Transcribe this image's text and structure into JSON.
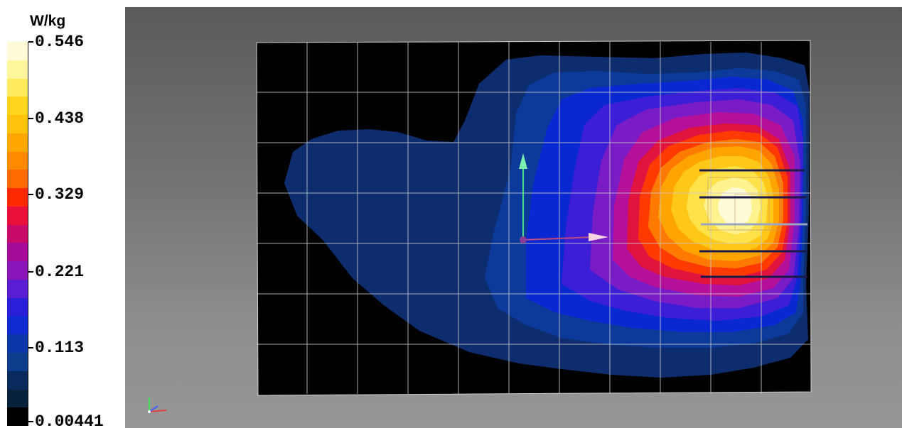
{
  "legend": {
    "unit": "W/kg",
    "ticks": [
      "0.546",
      "0.438",
      "0.329",
      "0.221",
      "0.113",
      "0.00441"
    ],
    "colors": [
      "#fffbd6",
      "#fff59a",
      "#ffe95c",
      "#ffd51e",
      "#ffc20a",
      "#ffa600",
      "#ff8a00",
      "#ff6a00",
      "#ff2a00",
      "#e8103a",
      "#c80a6a",
      "#a60a9a",
      "#8a14b8",
      "#5a1ed2",
      "#2a1ed8",
      "#0e2ad0",
      "#0a36a8",
      "#0c3d8c",
      "#0a2a5e",
      "#08223c",
      "#000000"
    ]
  },
  "plot": {
    "background": "#000000",
    "grid_color": "#c8c8c8",
    "axis_y_color": "#6ee7a0",
    "axis_x_color": "#f2b8d8",
    "triad": [
      "y-axis",
      "x-axis",
      "z-axis"
    ]
  }
}
